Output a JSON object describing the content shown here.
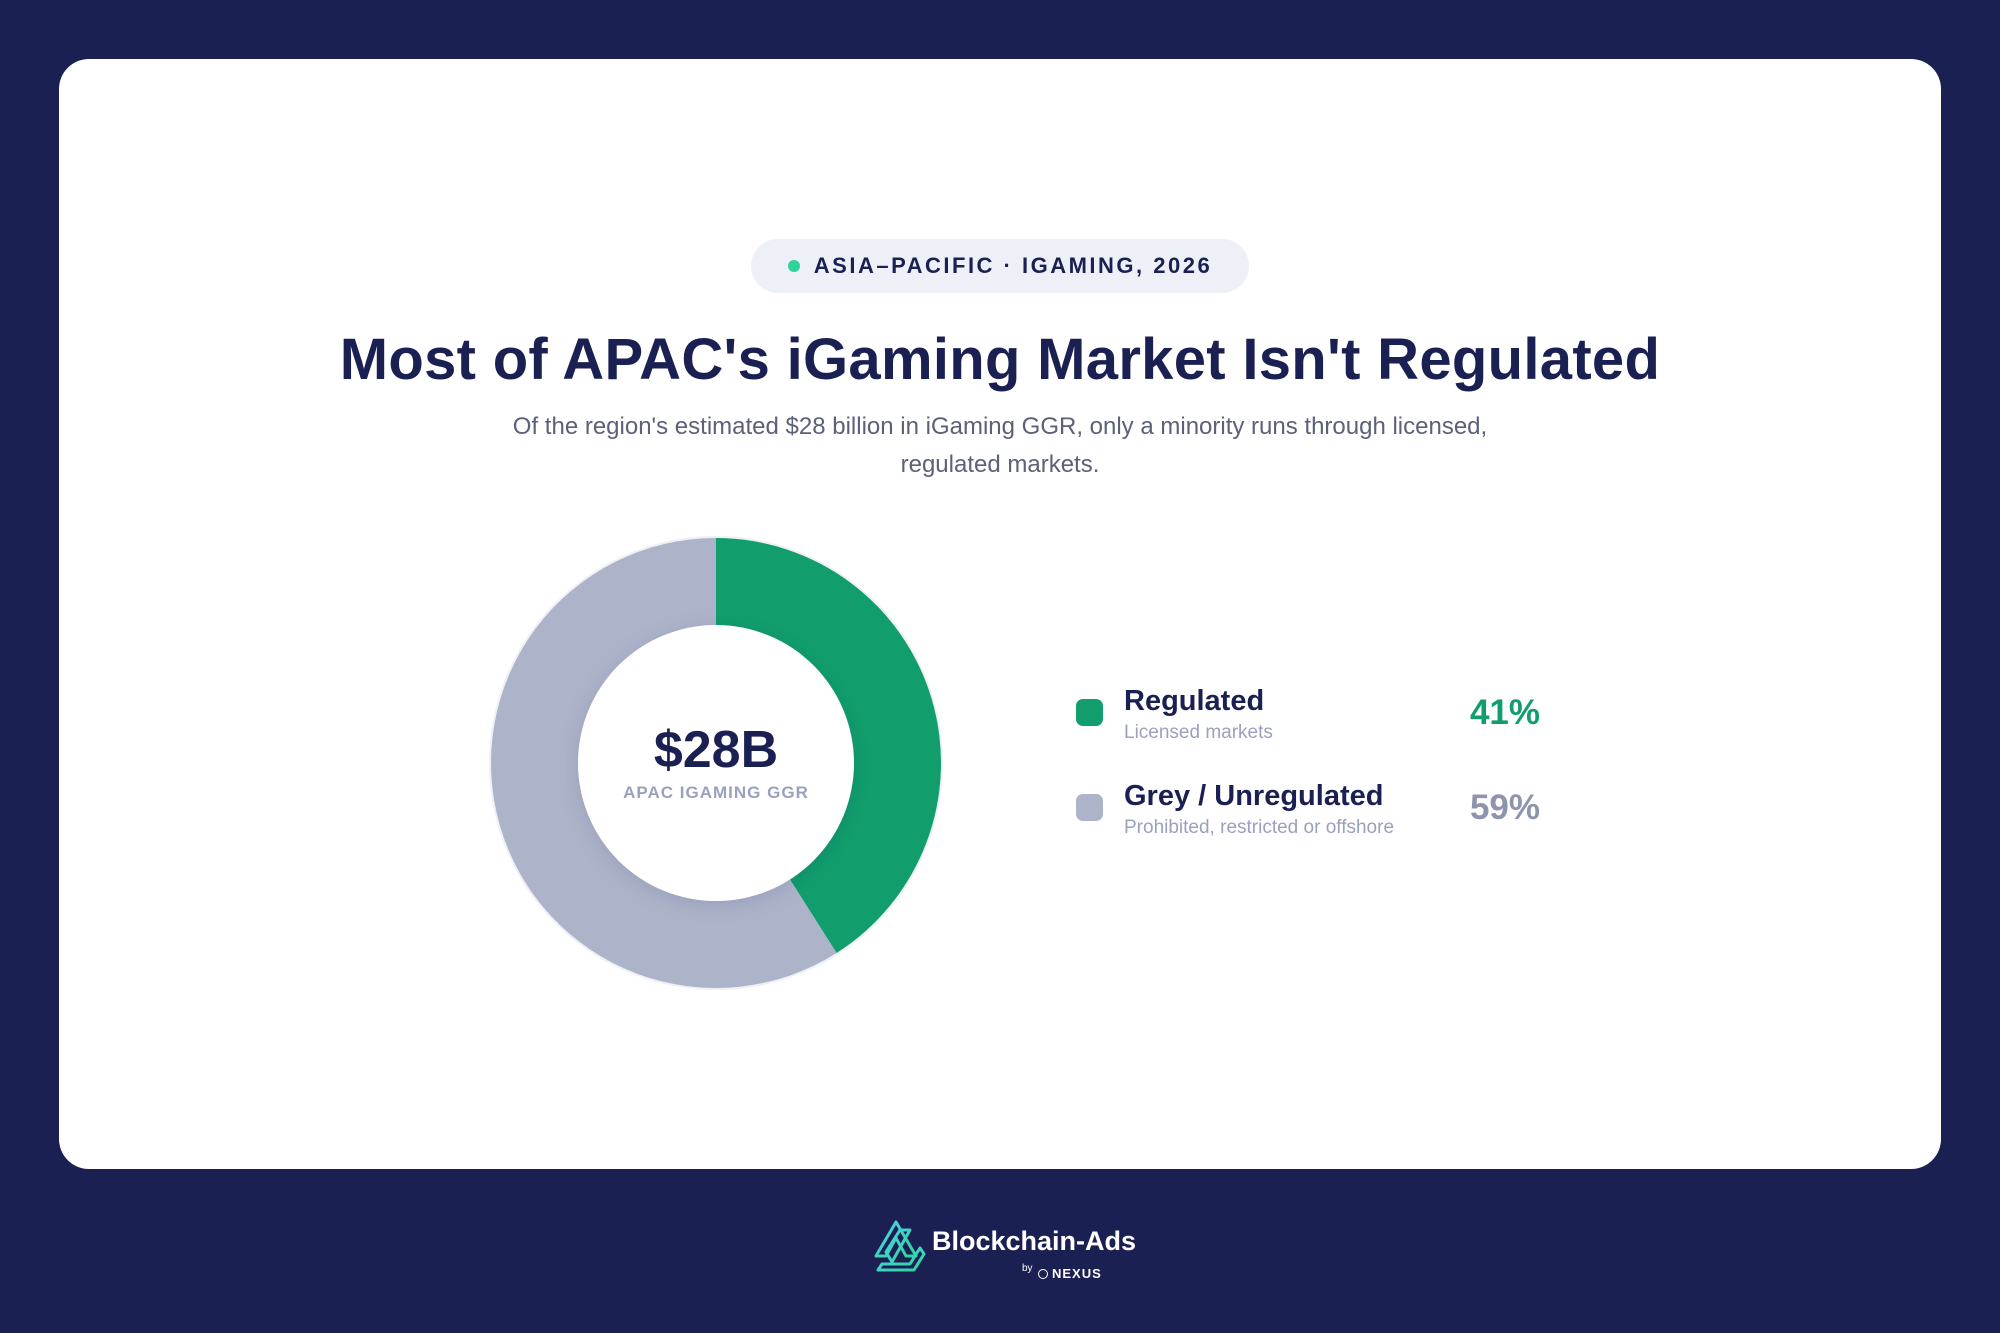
{
  "badge": {
    "text": "ASIA–PACIFIC · IGAMING, 2026",
    "dot_color": "#2fd39a"
  },
  "header": {
    "title": "Most of APAC's iGaming Market Isn't Regulated",
    "subtitle": "Of the region's estimated $28 billion in iGaming GGR, only a minority runs through licensed, regulated markets."
  },
  "chart_data": {
    "type": "pie",
    "variant": "donut",
    "center_value": "$28B",
    "center_label": "APAC IGAMING GGR",
    "series": [
      {
        "name": "Regulated",
        "description": "Licensed markets",
        "value": 41,
        "label": "41%",
        "color": "#119e6c"
      },
      {
        "name": "Grey / Unregulated",
        "description": "Prohibited, restricted or offshore",
        "value": 59,
        "label": "59%",
        "color": "#adb4c9"
      }
    ],
    "legend_placement": "right",
    "start_angle": "top, clockwise"
  },
  "colors": {
    "background": "#1b2052",
    "card": "#ffffff",
    "title": "#1b2052",
    "pct_regulated": "#119e6c",
    "pct_unregulated": "#8d94ad"
  },
  "footer": {
    "brand_name": "Blockchain-Ads",
    "by_text": "by",
    "partner_name": "NEXUS",
    "logo_icon": "blockchain-ads-logo-icon"
  }
}
